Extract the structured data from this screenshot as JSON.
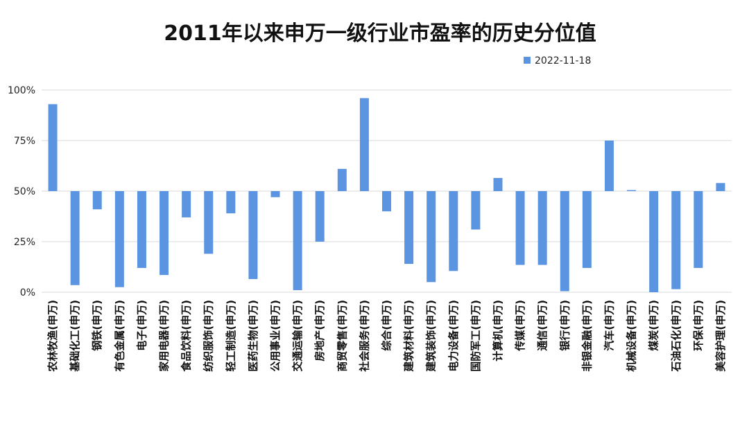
{
  "chart_data": {
    "type": "bar",
    "title": "2011年以来申万一级行业市盈率的历史分位值",
    "legend": {
      "entries": [
        "2022-11-18"
      ],
      "placement": "top-right"
    },
    "series": [
      {
        "name": "2022-11-18",
        "color": "#5b95e1",
        "values": [
          93,
          3.5,
          41,
          2.5,
          12,
          8.5,
          37,
          19,
          39,
          6.5,
          47,
          1,
          25,
          61,
          96,
          40,
          14,
          5,
          10.5,
          31,
          56.5,
          13.5,
          13.5,
          0.5,
          12,
          75,
          50.5,
          0,
          1.5,
          12,
          54
        ]
      }
    ],
    "categories": [
      "农林牧渔(申万)",
      "基础化工(申万)",
      "钢铁(申万)",
      "有色金属(申万)",
      "电子(申万)",
      "家用电器(申万)",
      "食品饮料(申万)",
      "纺织服饰(申万)",
      "轻工制造(申万)",
      "医药生物(申万)",
      "公用事业(申万)",
      "交通运输(申万)",
      "房地产(申万)",
      "商贸零售(申万)",
      "社会服务(申万)",
      "综合(申万)",
      "建筑材料(申万)",
      "建筑装饰(申万)",
      "电力设备(申万)",
      "国防军工(申万)",
      "计算机(申万)",
      "传媒(申万)",
      "通信(申万)",
      "银行(申万)",
      "非银金融(申万)",
      "汽车(申万)",
      "机械设备(申万)",
      "煤炭(申万)",
      "石油石化(申万)",
      "环保(申万)",
      "美容护理(申万)"
    ],
    "ylim": [
      0,
      100
    ],
    "yticks": [
      0,
      25,
      50,
      75,
      100
    ],
    "ytick_labels": [
      "0%",
      "25%",
      "50%",
      "75%",
      "100%"
    ],
    "baseline": 50,
    "grid": true,
    "xlabel": "",
    "ylabel": ""
  }
}
